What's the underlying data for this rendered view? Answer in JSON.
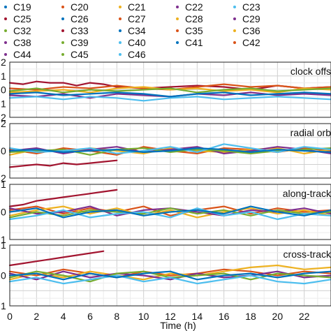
{
  "legend": {
    "items": [
      {
        "label": "C19",
        "color": "#0072bd"
      },
      {
        "label": "C20",
        "color": "#d95319"
      },
      {
        "label": "C21",
        "color": "#edb120"
      },
      {
        "label": "C22",
        "color": "#7e2f8e"
      },
      {
        "label": "C23",
        "color": "#4dbeee"
      },
      {
        "label": "C25",
        "color": "#a2142f"
      },
      {
        "label": "C26",
        "color": "#0072bd"
      },
      {
        "label": "C27",
        "color": "#d95319"
      },
      {
        "label": "C28",
        "color": "#edb120"
      },
      {
        "label": "C29",
        "color": "#7e2f8e"
      },
      {
        "label": "C32",
        "color": "#77ac30"
      },
      {
        "label": "C33",
        "color": "#a2142f"
      },
      {
        "label": "C34",
        "color": "#0072bd"
      },
      {
        "label": "C35",
        "color": "#d95319"
      },
      {
        "label": "C36",
        "color": "#edb120"
      },
      {
        "label": "C38",
        "color": "#7e2f8e"
      },
      {
        "label": "C39",
        "color": "#77ac30"
      },
      {
        "label": "C40",
        "color": "#4dbeee"
      },
      {
        "label": "C41",
        "color": "#0072bd"
      },
      {
        "label": "C42",
        "color": "#d95319"
      },
      {
        "label": "C44",
        "color": "#7e2f8e"
      },
      {
        "label": "C45",
        "color": "#77ac30"
      },
      {
        "label": "C46",
        "color": "#4dbeee"
      }
    ]
  },
  "chart_data": {
    "type": "line",
    "xlabel": "Time (h)",
    "xlim": [
      0,
      24
    ],
    "x_ticks": [
      "0",
      "2",
      "4",
      "6",
      "8",
      "10",
      "12",
      "14",
      "16",
      "18",
      "20",
      "22"
    ],
    "grid": true,
    "panels": [
      {
        "label": "clock offs",
        "ylim": [
          -2,
          2
        ],
        "y_tick_labels": [
          "2",
          "1",
          "0",
          "1",
          "2"
        ],
        "series": [
          {
            "color": "#a2142f",
            "x": [
              0,
              1,
              2,
              3,
              4,
              5,
              6,
              7,
              8,
              10,
              12,
              14,
              16,
              18,
              20,
              22,
              24
            ],
            "y": [
              0.5,
              0.4,
              0.6,
              0.5,
              0.5,
              0.3,
              0.5,
              0.4,
              0.2,
              0.1,
              0.2,
              0.3,
              0.2,
              0.0,
              0.3,
              0.1,
              0.2
            ]
          },
          {
            "color": "#d95319",
            "x": [
              0,
              2,
              4,
              6,
              8,
              10,
              12,
              14,
              16,
              18,
              20,
              22,
              24
            ],
            "y": [
              0.1,
              0.0,
              0.2,
              0.1,
              0.3,
              0.1,
              0.0,
              0.2,
              0.4,
              0.2,
              0.3,
              0.1,
              0.2
            ]
          },
          {
            "color": "#edb120",
            "x": [
              0,
              2,
              4,
              6,
              8,
              10,
              12,
              14,
              16,
              18,
              20,
              22,
              24
            ],
            "y": [
              -0.2,
              -0.1,
              0.0,
              -0.2,
              0.1,
              0.2,
              0.0,
              0.1,
              -0.1,
              0.0,
              -0.2,
              0.1,
              0.0
            ]
          },
          {
            "color": "#7e2f8e",
            "x": [
              0,
              2,
              4,
              6,
              8,
              10,
              12,
              14,
              16,
              18,
              20,
              22,
              24
            ],
            "y": [
              -0.4,
              -0.5,
              -0.3,
              -0.6,
              -0.3,
              -0.4,
              -0.5,
              -0.3,
              -0.4,
              -0.2,
              -0.4,
              -0.3,
              -0.4
            ]
          },
          {
            "color": "#77ac30",
            "x": [
              0,
              2,
              4,
              6,
              8,
              10,
              12,
              14,
              16,
              18,
              20,
              22,
              24
            ],
            "y": [
              -0.1,
              0.1,
              -0.2,
              0.0,
              -0.1,
              0.0,
              0.1,
              -0.2,
              0.0,
              0.1,
              -0.1,
              0.0,
              0.1
            ]
          },
          {
            "color": "#4dbeee",
            "x": [
              0,
              2,
              4,
              6,
              8,
              10,
              12,
              14,
              16,
              18,
              20,
              22,
              24
            ],
            "y": [
              -0.6,
              -0.5,
              -0.7,
              -0.5,
              -0.6,
              -0.8,
              -0.6,
              -0.5,
              -0.7,
              -0.6,
              -0.5,
              -0.6,
              -0.7
            ]
          },
          {
            "color": "#0072bd",
            "x": [
              0,
              2,
              4,
              6,
              8,
              10,
              12,
              14,
              16,
              18,
              20,
              22,
              24
            ],
            "y": [
              -0.3,
              -0.2,
              -0.4,
              -0.3,
              -0.2,
              -0.3,
              -0.5,
              -0.3,
              -0.2,
              -0.4,
              -0.3,
              -0.2,
              -0.3
            ]
          }
        ]
      },
      {
        "label": "radial orb",
        "ylim": [
          -2,
          2
        ],
        "y_tick_labels": [
          "2",
          "0",
          "2"
        ],
        "series": [
          {
            "color": "#a2142f",
            "x": [
              0,
              1,
              2,
              3,
              4,
              5,
              6,
              7,
              8
            ],
            "y": [
              -1.2,
              -1.1,
              -1.0,
              -1.1,
              -0.9,
              -1.0,
              -0.9,
              -0.8,
              -0.7
            ]
          },
          {
            "color": "#d95319",
            "x": [
              0,
              2,
              4,
              6,
              8,
              10,
              12,
              14,
              16,
              18,
              20,
              22,
              24
            ],
            "y": [
              0.1,
              -0.2,
              0.2,
              0.0,
              -0.3,
              0.3,
              0.0,
              -0.2,
              0.2,
              0.1,
              -0.1,
              0.2,
              0.0
            ]
          },
          {
            "color": "#edb120",
            "x": [
              0,
              2,
              4,
              6,
              8,
              10,
              12,
              14,
              16,
              18,
              20,
              22,
              24
            ],
            "y": [
              -0.3,
              0.1,
              -0.1,
              0.2,
              0.0,
              -0.2,
              0.2,
              0.0,
              -0.1,
              0.1,
              0.2,
              -0.2,
              0.1
            ]
          },
          {
            "color": "#7e2f8e",
            "x": [
              0,
              2,
              4,
              6,
              8,
              10,
              12,
              14,
              16,
              18,
              20,
              22,
              24
            ],
            "y": [
              0.0,
              0.2,
              -0.2,
              0.1,
              0.3,
              -0.1,
              0.1,
              0.3,
              -0.2,
              0.0,
              0.3,
              0.1,
              -0.2
            ]
          },
          {
            "color": "#77ac30",
            "x": [
              0,
              2,
              4,
              6,
              8,
              10,
              12,
              14,
              16,
              18,
              20,
              22,
              24
            ],
            "y": [
              -0.1,
              0.0,
              0.1,
              -0.3,
              0.1,
              0.2,
              -0.1,
              0.1,
              0.0,
              -0.2,
              0.0,
              0.1,
              0.2
            ]
          },
          {
            "color": "#4dbeee",
            "x": [
              0,
              2,
              4,
              6,
              8,
              10,
              12,
              14,
              16,
              18,
              20,
              22,
              24
            ],
            "y": [
              0.2,
              -0.1,
              0.0,
              0.2,
              -0.2,
              0.0,
              0.3,
              -0.1,
              0.5,
              0.2,
              -0.1,
              0.3,
              0.1
            ]
          },
          {
            "color": "#0072bd",
            "x": [
              0,
              2,
              4,
              6,
              8,
              10,
              12,
              14,
              16,
              18,
              20,
              22,
              24
            ],
            "y": [
              0.0,
              0.1,
              -0.1,
              0.0,
              0.1,
              -0.1,
              0.0,
              0.2,
              0.1,
              -0.1,
              0.1,
              0.0,
              -0.1
            ]
          }
        ]
      },
      {
        "label": "along-track",
        "ylim": [
          -1.5,
          1.5
        ],
        "y_tick_labels": [
          "1",
          "0",
          "1"
        ],
        "series": [
          {
            "color": "#a2142f",
            "x": [
              0,
              1,
              2,
              3,
              4,
              5,
              6,
              7,
              8
            ],
            "y": [
              0.3,
              0.4,
              0.6,
              0.7,
              0.8,
              0.9,
              1.0,
              1.1,
              1.2
            ]
          },
          {
            "color": "#d95319",
            "x": [
              0,
              2,
              4,
              6,
              8,
              10,
              12,
              14,
              16,
              18,
              20,
              22,
              24
            ],
            "y": [
              0.1,
              0.3,
              -0.1,
              0.2,
              0.0,
              0.3,
              -0.2,
              0.1,
              0.3,
              -0.1,
              0.2,
              0.0,
              0.1
            ]
          },
          {
            "color": "#edb120",
            "x": [
              0,
              2,
              4,
              6,
              8,
              10,
              12,
              14,
              16,
              18,
              20,
              22,
              24
            ],
            "y": [
              -0.2,
              0.1,
              0.3,
              -0.1,
              0.2,
              -0.2,
              0.1,
              -0.3,
              0.0,
              0.2,
              -0.1,
              0.1,
              -0.2
            ]
          },
          {
            "color": "#7e2f8e",
            "x": [
              0,
              2,
              4,
              6,
              8,
              10,
              12,
              14,
              16,
              18,
              20,
              22,
              24
            ],
            "y": [
              0.2,
              -0.1,
              0.0,
              0.3,
              -0.2,
              0.1,
              0.2,
              0.0,
              -0.2,
              0.1,
              0.0,
              0.2,
              -0.1
            ]
          },
          {
            "color": "#77ac30",
            "x": [
              0,
              2,
              4,
              6,
              8,
              10,
              12,
              14,
              16,
              18,
              20,
              22,
              24
            ],
            "y": [
              -0.3,
              0.0,
              -0.2,
              0.1,
              0.0,
              -0.1,
              0.2,
              -0.1,
              0.1,
              -0.2,
              0.1,
              -0.1,
              0.0
            ]
          },
          {
            "color": "#4dbeee",
            "x": [
              0,
              2,
              4,
              6,
              8,
              10,
              12,
              14,
              16,
              18,
              20,
              22,
              24
            ],
            "y": [
              -0.4,
              -0.2,
              0.1,
              -0.3,
              -0.1,
              0.0,
              -0.3,
              0.2,
              -0.2,
              0.0,
              -0.4,
              -0.1,
              -0.2
            ]
          },
          {
            "color": "#0072bd",
            "x": [
              0,
              2,
              4,
              6,
              8,
              10,
              12,
              14,
              16,
              18,
              20,
              22,
              24
            ],
            "y": [
              0.0,
              0.2,
              -0.3,
              0.0,
              0.1,
              -0.2,
              0.0,
              0.1,
              -0.1,
              0.3,
              0.0,
              -0.2,
              0.1
            ]
          }
        ]
      },
      {
        "label": "cross-track",
        "ylim": [
          -1.5,
          1.5
        ],
        "y_tick_labels": [
          "1",
          "0",
          "1"
        ],
        "series": [
          {
            "color": "#a2142f",
            "x": [
              0,
              1,
              2,
              3,
              4,
              5,
              6,
              7
            ],
            "y": [
              0.5,
              0.6,
              0.7,
              0.8,
              0.9,
              1.0,
              1.1,
              1.2
            ]
          },
          {
            "color": "#d95319",
            "x": [
              0,
              2,
              4,
              6,
              8,
              10,
              12,
              14,
              16,
              18,
              20,
              22,
              24
            ],
            "y": [
              0.2,
              0.0,
              0.3,
              0.1,
              -0.1,
              0.2,
              0.0,
              0.1,
              0.3,
              0.2,
              0.0,
              0.2,
              0.1
            ]
          },
          {
            "color": "#edb120",
            "x": [
              0,
              2,
              4,
              6,
              8,
              10,
              12,
              14,
              16,
              18,
              20,
              22,
              24
            ],
            "y": [
              -0.2,
              0.1,
              -0.1,
              0.2,
              0.0,
              -0.2,
              0.1,
              0.0,
              0.2,
              0.4,
              0.5,
              0.3,
              0.4
            ]
          },
          {
            "color": "#7e2f8e",
            "x": [
              0,
              2,
              4,
              6,
              8,
              10,
              12,
              14,
              16,
              18,
              20,
              22,
              24
            ],
            "y": [
              0.1,
              -0.2,
              0.2,
              -0.1,
              0.1,
              0.0,
              -0.2,
              0.1,
              -0.1,
              0.0,
              0.2,
              -0.1,
              0.0
            ]
          },
          {
            "color": "#77ac30",
            "x": [
              0,
              2,
              4,
              6,
              8,
              10,
              12,
              14,
              16,
              18,
              20,
              22,
              24
            ],
            "y": [
              -0.1,
              0.2,
              0.0,
              -0.3,
              0.1,
              0.2,
              -0.1,
              0.0,
              0.1,
              -0.2,
              0.1,
              0.0,
              -0.1
            ]
          },
          {
            "color": "#4dbeee",
            "x": [
              0,
              2,
              4,
              6,
              8,
              10,
              12,
              14,
              16,
              18,
              20,
              22,
              24
            ],
            "y": [
              -0.3,
              -0.1,
              -0.4,
              -0.2,
              0.0,
              -0.3,
              -0.1,
              -0.4,
              -0.2,
              0.0,
              -0.3,
              -0.4,
              -0.2
            ]
          },
          {
            "color": "#0072bd",
            "x": [
              0,
              2,
              4,
              6,
              8,
              10,
              12,
              14,
              16,
              18,
              20,
              22,
              24
            ],
            "y": [
              0.0,
              0.1,
              -0.2,
              0.1,
              -0.1,
              0.1,
              0.2,
              -0.2,
              0.0,
              0.1,
              -0.1,
              0.1,
              0.2
            ]
          }
        ]
      }
    ]
  }
}
